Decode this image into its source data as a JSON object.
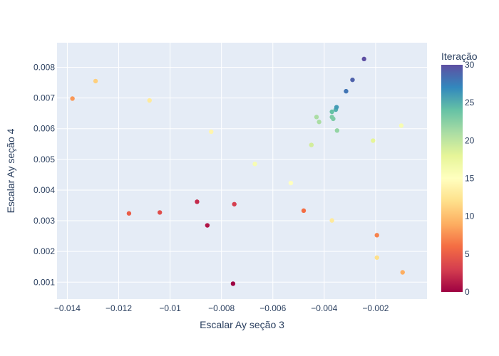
{
  "chart_data": {
    "type": "scatter",
    "xlabel": "Escalar Ay seção 3",
    "ylabel": "Escalar Ay seção 4",
    "xlim": [
      -0.0144,
      -0.0
    ],
    "ylim": [
      0.00045,
      0.0088
    ],
    "x_ticks": [
      -0.014,
      -0.012,
      -0.01,
      -0.008,
      -0.006,
      -0.004,
      -0.002
    ],
    "x_tick_labels": [
      "−0.014",
      "−0.012",
      "−0.01",
      "−0.008",
      "−0.006",
      "−0.004",
      "−0.002"
    ],
    "y_ticks": [
      0.001,
      0.002,
      0.003,
      0.004,
      0.005,
      0.006,
      0.007,
      0.008
    ],
    "y_tick_labels": [
      "0.001",
      "0.002",
      "0.003",
      "0.004",
      "0.005",
      "0.006",
      "0.007",
      "0.008"
    ],
    "grid": true,
    "colorbar": {
      "title": "Iteração",
      "range": [
        0,
        30
      ],
      "ticks": [
        0,
        5,
        10,
        15,
        20,
        25,
        30
      ],
      "colorscale": "Spectral"
    },
    "points": [
      {
        "x": -0.00755,
        "y": 0.00095,
        "iter": 0
      },
      {
        "x": -0.00855,
        "y": 0.00285,
        "iter": 1
      },
      {
        "x": -0.00895,
        "y": 0.00362,
        "iter": 2
      },
      {
        "x": -0.0075,
        "y": 0.00354,
        "iter": 3
      },
      {
        "x": -0.0104,
        "y": 0.00327,
        "iter": 4
      },
      {
        "x": -0.0116,
        "y": 0.00324,
        "iter": 5
      },
      {
        "x": -0.0048,
        "y": 0.00333,
        "iter": 6
      },
      {
        "x": -0.00195,
        "y": 0.00253,
        "iter": 7
      },
      {
        "x": -0.0138,
        "y": 0.00698,
        "iter": 8
      },
      {
        "x": -0.00095,
        "y": 0.00132,
        "iter": 9
      },
      {
        "x": -0.0129,
        "y": 0.00755,
        "iter": 11
      },
      {
        "x": -0.00195,
        "y": 0.0018,
        "iter": 12
      },
      {
        "x": -0.0108,
        "y": 0.00692,
        "iter": 13
      },
      {
        "x": -0.0037,
        "y": 0.00301,
        "iter": 13
      },
      {
        "x": -0.0084,
        "y": 0.0059,
        "iter": 14
      },
      {
        "x": -0.0053,
        "y": 0.00423,
        "iter": 15
      },
      {
        "x": -0.0067,
        "y": 0.00485,
        "iter": 16
      },
      {
        "x": -0.001,
        "y": 0.0061,
        "iter": 16
      },
      {
        "x": -0.0021,
        "y": 0.00561,
        "iter": 18
      },
      {
        "x": -0.0045,
        "y": 0.00547,
        "iter": 19
      },
      {
        "x": -0.0043,
        "y": 0.00638,
        "iter": 21
      },
      {
        "x": -0.0042,
        "y": 0.00622,
        "iter": 21
      },
      {
        "x": -0.0035,
        "y": 0.00594,
        "iter": 22
      },
      {
        "x": -0.0037,
        "y": 0.00638,
        "iter": 23
      },
      {
        "x": -0.00365,
        "y": 0.00632,
        "iter": 23
      },
      {
        "x": -0.0037,
        "y": 0.00655,
        "iter": 24
      },
      {
        "x": -0.00355,
        "y": 0.00662,
        "iter": 25
      },
      {
        "x": -0.00352,
        "y": 0.0067,
        "iter": 26
      },
      {
        "x": -0.00315,
        "y": 0.00722,
        "iter": 28
      },
      {
        "x": -0.0029,
        "y": 0.00759,
        "iter": 29
      },
      {
        "x": -0.00245,
        "y": 0.00827,
        "iter": 30
      }
    ]
  }
}
